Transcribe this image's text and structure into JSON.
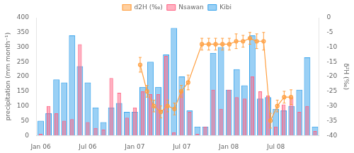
{
  "chart_data": {
    "type": "bar",
    "categories": [
      "Jan 06",
      null,
      null,
      null,
      null,
      null,
      "Jul 06",
      null,
      null,
      null,
      null,
      null,
      "Jan 07",
      null,
      null,
      null,
      null,
      null,
      "Jul 07",
      null,
      null,
      null,
      null,
      null,
      "Jan 08",
      null,
      null,
      null,
      null,
      null,
      "Jul 08",
      null,
      null,
      null,
      null,
      null
    ],
    "series": [
      {
        "name": "Kibi",
        "values": [
          50,
          75,
          190,
          180,
          340,
          235,
          180,
          95,
          45,
          95,
          110,
          80,
          80,
          165,
          250,
          165,
          275,
          365,
          200,
          85,
          30,
          30,
          280,
          300,
          155,
          225,
          170,
          340,
          125,
          130,
          90,
          85,
          100,
          155,
          265,
          30
        ]
      },
      {
        "name": "Nsawan",
        "values": [
          5,
          100,
          75,
          50,
          55,
          310,
          45,
          25,
          20,
          195,
          145,
          60,
          95,
          150,
          140,
          140,
          270,
          10,
          150,
          80,
          5,
          30,
          155,
          90,
          155,
          130,
          125,
          200,
          150,
          135,
          30,
          105,
          130,
          80,
          100,
          15
        ]
      },
      {
        "name": "d2H (‰)",
        "type": "line",
        "axis": "y2",
        "marker": "circle",
        "x": [
          12,
          13,
          14,
          15,
          16,
          17,
          18,
          19,
          21,
          22,
          23,
          24,
          25,
          26,
          27,
          28,
          29,
          30,
          31,
          32,
          33,
          34
        ],
        "values": [
          -16,
          -25,
          -30,
          -32,
          -30,
          -31,
          -25,
          -22,
          -9,
          -9,
          -9,
          -9,
          -9,
          -8,
          -8,
          -7,
          -8,
          -8,
          -35,
          -30,
          -27,
          -27
        ],
        "errors": [
          2.5,
          2.0,
          2.0,
          2.0,
          2.0,
          2.0,
          2.0,
          2.5,
          2.0,
          2.0,
          2.0,
          2.0,
          2.0,
          2.5,
          2.0,
          2.0,
          2.5,
          3.0,
          2.5,
          2.0,
          2.0,
          2.5
        ]
      }
    ],
    "ylabel": "precipitation (mm month⁻¹)",
    "y2label": "δ²H (‰)",
    "ylim": [
      0,
      400
    ],
    "yticks": [
      0,
      50,
      100,
      150,
      200,
      250,
      300,
      350,
      400
    ],
    "y2lim": [
      -40,
      0
    ],
    "y2ticks": [
      0,
      -5,
      -10,
      -15,
      -20,
      -25,
      -30,
      -35,
      -40
    ],
    "grid": false,
    "legend": "top"
  }
}
